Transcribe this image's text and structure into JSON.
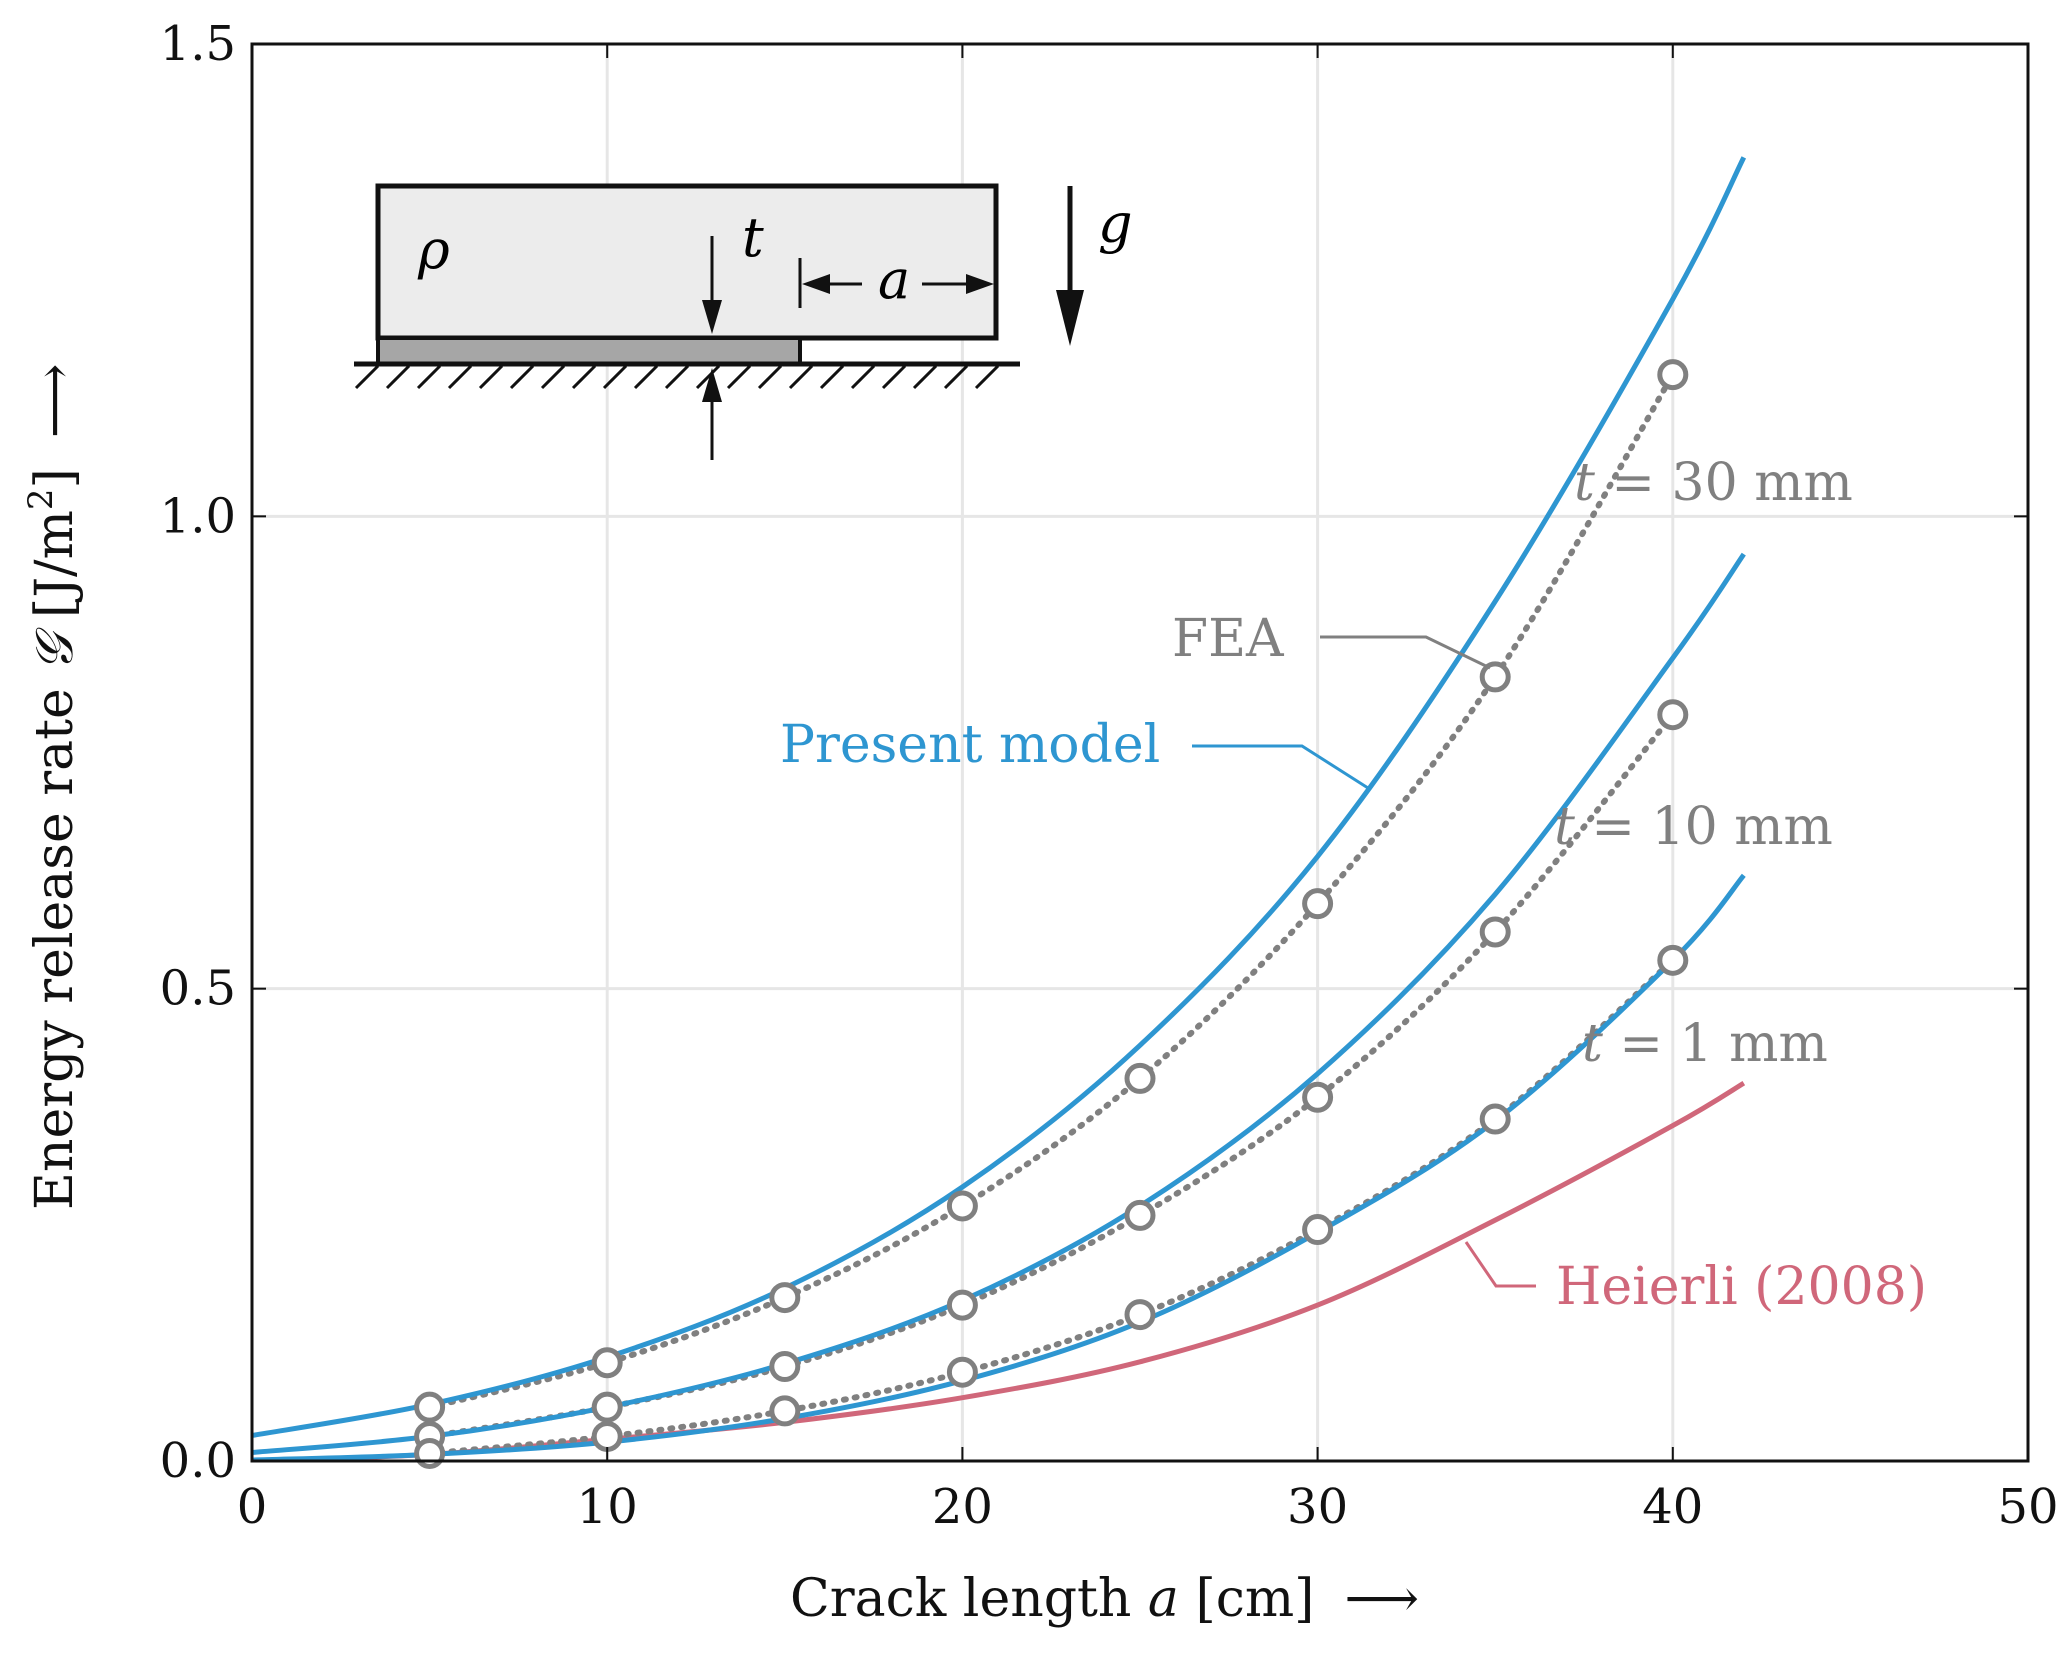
{
  "chart_data": {
    "type": "line",
    "xlabel": {
      "prefix": "Crack length ",
      "var": "a",
      "unit": " [cm]",
      "arrow": "⟶"
    },
    "ylabel": {
      "prefix": "Energy release rate ",
      "var": "𝒢",
      "unit": " [J/m",
      "sup": "2",
      "close": "]",
      "arrow": "⟶"
    },
    "xlim": [
      0,
      50
    ],
    "ylim": [
      0,
      1.5
    ],
    "xticks": [
      0,
      10,
      20,
      30,
      40,
      50
    ],
    "yticks": [
      0.0,
      0.5,
      1.0,
      1.5
    ],
    "xtick_labels": [
      "0",
      "10",
      "20",
      "30",
      "40",
      "50"
    ],
    "ytick_labels": [
      "0.0",
      "0.5",
      "1.0",
      "1.5"
    ],
    "grid": true,
    "colors": {
      "model": "#2e96d1",
      "fea": "#808080",
      "heierli": "#d0677a",
      "axis": "#111111",
      "grid": "#e6e6e6"
    },
    "series": [
      {
        "kind": "model",
        "t_mm": 30,
        "x": [
          0,
          5,
          10,
          15,
          20,
          25,
          30,
          35,
          40,
          42
        ],
        "y": [
          0.027,
          0.06,
          0.11,
          0.183,
          0.29,
          0.44,
          0.64,
          0.91,
          1.23,
          1.38
        ]
      },
      {
        "kind": "model",
        "t_mm": 10,
        "x": [
          0,
          5,
          10,
          15,
          20,
          25,
          30,
          35,
          40,
          42
        ],
        "y": [
          0.009,
          0.026,
          0.057,
          0.103,
          0.17,
          0.27,
          0.41,
          0.6,
          0.85,
          0.96
        ]
      },
      {
        "kind": "model",
        "t_mm": 1,
        "x": [
          0,
          5,
          10,
          15,
          20,
          25,
          30,
          35,
          40,
          42
        ],
        "y": [
          0.001,
          0.007,
          0.02,
          0.045,
          0.085,
          0.147,
          0.242,
          0.36,
          0.53,
          0.62
        ]
      },
      {
        "kind": "heierli",
        "x": [
          0,
          5,
          10,
          15,
          20,
          25,
          30,
          35,
          40,
          42
        ],
        "y": [
          0.0,
          0.007,
          0.023,
          0.041,
          0.067,
          0.105,
          0.165,
          0.255,
          0.355,
          0.4
        ]
      },
      {
        "kind": "fea",
        "t_mm": 30,
        "x": [
          5,
          10,
          15,
          20,
          25,
          30,
          35,
          40
        ],
        "y": [
          0.057,
          0.104,
          0.173,
          0.27,
          0.405,
          0.59,
          0.83,
          1.15
        ]
      },
      {
        "kind": "fea",
        "t_mm": 10,
        "x": [
          5,
          10,
          15,
          20,
          25,
          30,
          35,
          40
        ],
        "y": [
          0.026,
          0.057,
          0.1,
          0.165,
          0.26,
          0.385,
          0.56,
          0.79
        ]
      },
      {
        "kind": "fea",
        "t_mm": 1,
        "x": [
          5,
          10,
          15,
          20,
          25,
          30,
          35,
          40
        ],
        "y": [
          0.008,
          0.026,
          0.053,
          0.094,
          0.155,
          0.245,
          0.362,
          0.53
        ]
      }
    ],
    "annotations": {
      "t30": {
        "var": "t",
        "rest": " = 30 mm"
      },
      "t10": {
        "var": "t",
        "rest": " = 10 mm"
      },
      "t1": {
        "var": "t",
        "rest": " = 1 mm"
      },
      "fea": "FEA",
      "model": "Present model",
      "heierli": "Heierli (2008)"
    },
    "inset": {
      "rho": "ρ",
      "t": "t",
      "a": "a",
      "g": "g"
    }
  }
}
